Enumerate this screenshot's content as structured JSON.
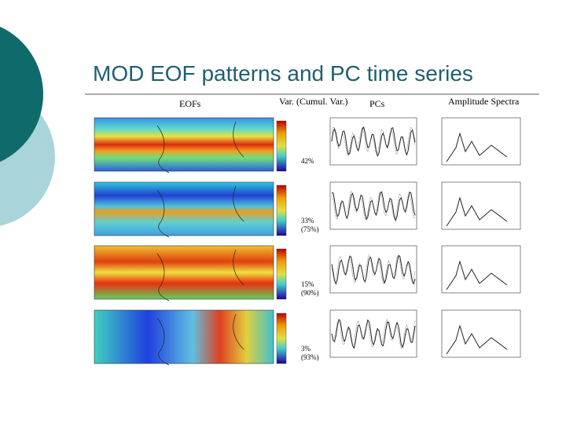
{
  "title": "MOD EOF patterns and PC time series",
  "headers": [
    "EOFs",
    "Var. (Cumul. Var.)",
    "PCs",
    "Amplitude Spectra"
  ],
  "rows": [
    {
      "variance": "42%"
    },
    {
      "variance": "33%",
      "cumulative": "(75%)"
    },
    {
      "variance": "15%",
      "cumulative": "(90%)"
    },
    {
      "variance": "3%",
      "cumulative": "(93%)"
    }
  ]
}
